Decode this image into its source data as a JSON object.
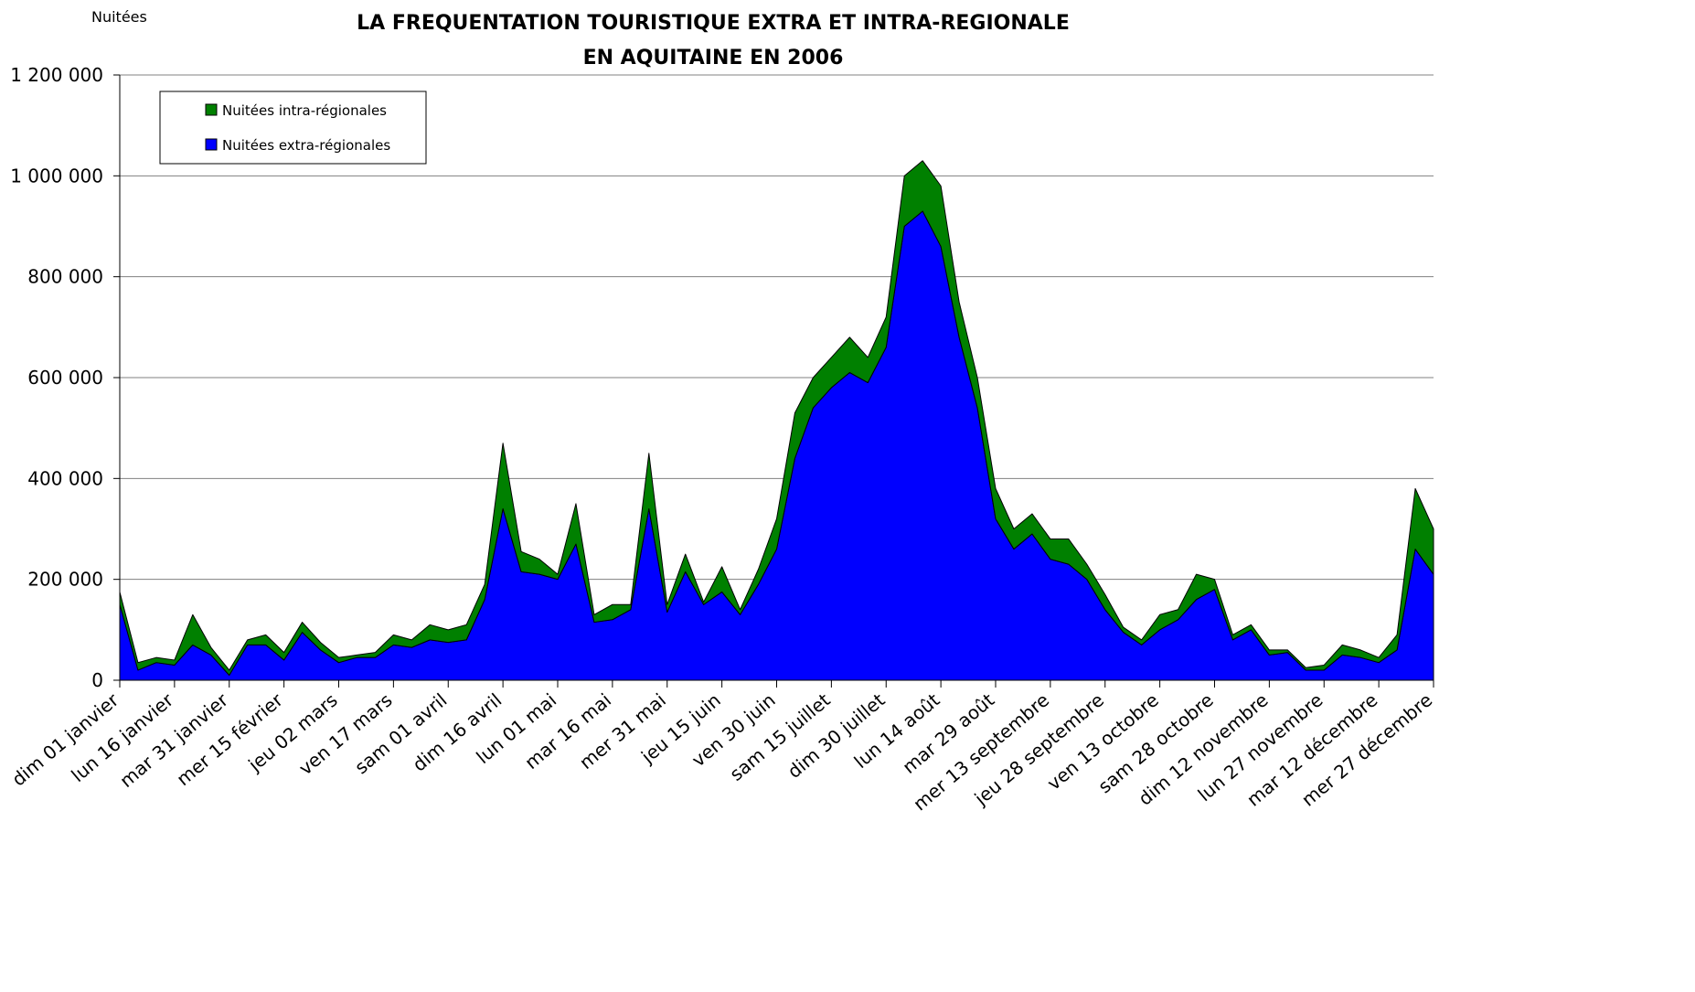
{
  "chart_data": {
    "type": "stacked_area",
    "title": [
      "LA FREQUENTATION TOURISTIQUE EXTRA ET INTRA-REGIONALE",
      "EN AQUITAINE EN 2006"
    ],
    "y_label": "Nuitées",
    "categories": [
      "dim 01 janvier",
      null,
      null,
      "lun 16 janvier",
      null,
      null,
      "mar 31 janvier",
      null,
      null,
      "mer 15 février",
      null,
      null,
      "jeu 02 mars",
      null,
      null,
      "ven 17 mars",
      null,
      null,
      "sam 01 avril",
      null,
      null,
      "dim 16 avril",
      null,
      null,
      "lun 01 mai",
      null,
      null,
      "mar 16 mai",
      null,
      null,
      "mer 31 mai",
      null,
      null,
      "jeu 15 juin",
      null,
      null,
      "ven 30 juin",
      null,
      null,
      "sam 15 juillet",
      null,
      null,
      "dim 30 juillet",
      null,
      null,
      "lun 14 août",
      null,
      null,
      "mar 29 août",
      null,
      null,
      "mer 13 septembre",
      null,
      null,
      "jeu 28 septembre",
      null,
      null,
      "ven 13 octobre",
      null,
      null,
      "sam 28 octobre",
      null,
      null,
      "dim 12 novembre",
      null,
      null,
      "lun 27 novembre",
      null,
      null,
      "mar 12 décembre",
      null,
      null,
      "mer 27 décembre"
    ],
    "series": [
      {
        "name": "Nuitées extra-régionales",
        "color": "#0000ff",
        "values": [
          150000,
          20000,
          35000,
          30000,
          70000,
          50000,
          10000,
          70000,
          70000,
          40000,
          95000,
          60000,
          35000,
          45000,
          45000,
          70000,
          65000,
          80000,
          75000,
          80000,
          160000,
          340000,
          215000,
          210000,
          200000,
          270000,
          115000,
          120000,
          140000,
          340000,
          135000,
          215000,
          150000,
          175000,
          130000,
          190000,
          260000,
          440000,
          540000,
          580000,
          610000,
          590000,
          660000,
          900000,
          930000,
          860000,
          680000,
          540000,
          320000,
          260000,
          290000,
          240000,
          230000,
          200000,
          140000,
          95000,
          70000,
          100000,
          120000,
          160000,
          180000,
          80000,
          100000,
          50000,
          55000,
          20000,
          20000,
          50000,
          45000,
          35000,
          60000,
          260000,
          210000
        ]
      },
      {
        "name": "Nuitées intra-régionales",
        "color": "#008000",
        "values": [
          25000,
          15000,
          10000,
          10000,
          60000,
          15000,
          10000,
          10000,
          20000,
          15000,
          20000,
          15000,
          10000,
          5000,
          10000,
          20000,
          15000,
          30000,
          25000,
          30000,
          30000,
          130000,
          40000,
          30000,
          10000,
          80000,
          15000,
          30000,
          10000,
          110000,
          15000,
          35000,
          5000,
          50000,
          10000,
          30000,
          60000,
          90000,
          60000,
          60000,
          70000,
          50000,
          60000,
          100000,
          100000,
          120000,
          70000,
          60000,
          60000,
          40000,
          40000,
          40000,
          50000,
          30000,
          30000,
          10000,
          10000,
          30000,
          20000,
          50000,
          20000,
          10000,
          10000,
          10000,
          5000,
          5000,
          10000,
          20000,
          15000,
          10000,
          30000,
          120000,
          90000
        ]
      }
    ],
    "ylim": [
      0,
      1200000
    ],
    "yticks": [
      0,
      {
        "value": 200000,
        "label": "200 000"
      },
      {
        "value": 400000,
        "label": "400 000"
      },
      {
        "value": 600000,
        "label": "600 000"
      },
      {
        "value": 800000,
        "label": "800 000"
      },
      {
        "value": 1000000,
        "label": "1 000 000"
      },
      {
        "value": 1200000,
        "label": "1 200 000"
      }
    ],
    "grid": true
  }
}
